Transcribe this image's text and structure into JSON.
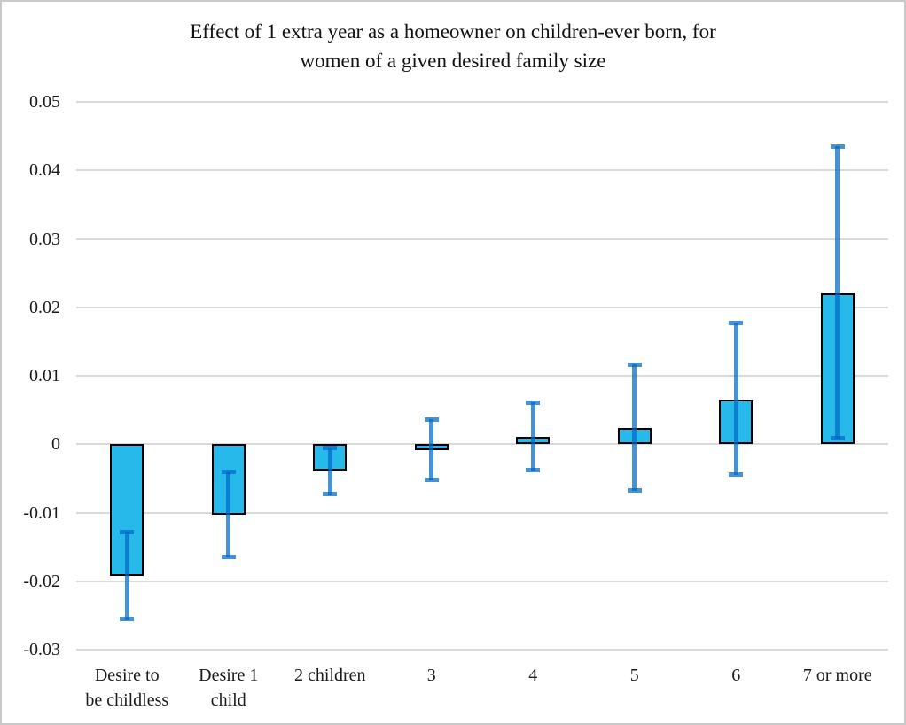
{
  "figure": {
    "title_line1": "Effect of 1 extra year as a homeowner on children-ever born, for",
    "title_line2": "women of a given desired family size"
  },
  "chart_data": {
    "type": "bar",
    "title": "Effect of 1 extra year as a homeowner on children-ever born, for women of a given desired family size",
    "xlabel": "",
    "ylabel": "",
    "categories": [
      "Desire to\nbe childless",
      "Desire 1\nchild",
      "2 children",
      "3",
      "4",
      "5",
      "6",
      "7 or more"
    ],
    "values": [
      -0.0192,
      -0.0103,
      -0.0039,
      -0.0009,
      0.0011,
      0.0024,
      0.0065,
      0.0221
    ],
    "error_low": [
      -0.0256,
      -0.0165,
      -0.0073,
      -0.0053,
      -0.0038,
      -0.0068,
      -0.0045,
      0.0008
    ],
    "error_high": [
      -0.0128,
      -0.004,
      -0.0005,
      0.0037,
      0.0061,
      0.0117,
      0.0178,
      0.0435
    ],
    "ylim": [
      -0.03,
      0.05
    ],
    "ytick_values": [
      0.05,
      0.04,
      0.03,
      0.02,
      0.01,
      0,
      -0.01,
      -0.02,
      -0.03
    ],
    "ytick_labels": [
      "0.05",
      "0.04",
      "0.03",
      "0.02",
      "0.01",
      "0",
      "-0.01",
      "-0.02",
      "-0.03"
    ],
    "grid": true,
    "legend": false,
    "colors": {
      "bar_fill": "#28b9eb",
      "bar_border": "#000000",
      "error_bar": "rgba(0,104,197,0.72)",
      "gridline": "#d9d9d9",
      "frame_border": "#c9c9c9",
      "background": "#ffffff",
      "text": "#1a1a1a"
    }
  }
}
